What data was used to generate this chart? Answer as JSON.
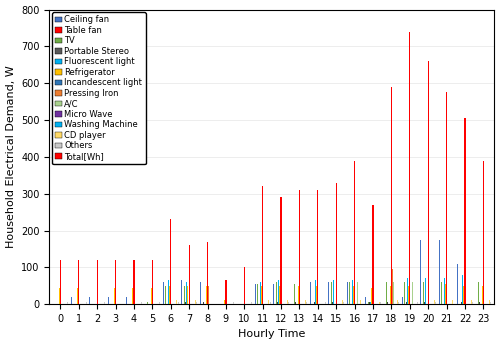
{
  "hours": [
    0,
    1,
    2,
    3,
    4,
    5,
    6,
    7,
    8,
    9,
    10,
    11,
    12,
    13,
    14,
    15,
    16,
    17,
    18,
    19,
    20,
    21,
    22,
    23
  ],
  "categories": [
    "Ceiling fan",
    "Table fan",
    "TV",
    "Portable Stereo",
    "Fluorescent light",
    "Refrigerator",
    "Incandescent light",
    "Pressing Iron",
    "A/C",
    "Micro Wave",
    "Washing Machine",
    "CD player",
    "Others",
    "Total[Wh]"
  ],
  "colors": [
    "#4472C4",
    "#FF0000",
    "#70AD47",
    "#404040",
    "#00B0F0",
    "#FFC000",
    "#2E75B6",
    "#ED7D31",
    "#A9D18E",
    "#7030A0",
    "#00B0F0",
    "#FFD966",
    "#C9C9C9",
    "#FF0000"
  ],
  "data": {
    "Ceiling fan": [
      20,
      20,
      20,
      20,
      20,
      20,
      60,
      65,
      60,
      0,
      0,
      55,
      55,
      55,
      60,
      60,
      60,
      20,
      20,
      20,
      175,
      175,
      110,
      115
    ],
    "Table fan": [
      0,
      0,
      0,
      0,
      0,
      0,
      0,
      0,
      0,
      0,
      0,
      0,
      0,
      0,
      0,
      0,
      0,
      0,
      0,
      0,
      0,
      0,
      0,
      0
    ],
    "TV": [
      0,
      0,
      0,
      0,
      0,
      5,
      50,
      50,
      0,
      0,
      0,
      55,
      60,
      55,
      60,
      60,
      60,
      5,
      60,
      60,
      60,
      60,
      75,
      60
    ],
    "Portable Stereo": [
      0,
      0,
      0,
      0,
      0,
      0,
      5,
      5,
      5,
      0,
      0,
      5,
      5,
      5,
      5,
      5,
      5,
      5,
      5,
      5,
      5,
      5,
      5,
      5
    ],
    "Fluorescent light": [
      0,
      0,
      0,
      0,
      0,
      0,
      65,
      60,
      60,
      0,
      0,
      60,
      65,
      60,
      65,
      65,
      65,
      5,
      70,
      70,
      70,
      70,
      80,
      70
    ],
    "Refrigerator": [
      45,
      45,
      45,
      45,
      45,
      45,
      50,
      50,
      50,
      10,
      10,
      50,
      50,
      50,
      50,
      50,
      50,
      45,
      50,
      50,
      55,
      55,
      50,
      50
    ],
    "Incandescent light": [
      0,
      0,
      0,
      0,
      0,
      0,
      5,
      5,
      5,
      0,
      0,
      5,
      5,
      5,
      5,
      5,
      5,
      5,
      5,
      5,
      5,
      5,
      5,
      5
    ],
    "Pressing Iron": [
      0,
      0,
      0,
      0,
      0,
      0,
      0,
      0,
      50,
      0,
      0,
      0,
      0,
      0,
      0,
      0,
      0,
      0,
      95,
      95,
      0,
      0,
      0,
      0
    ],
    "A/C": [
      0,
      0,
      0,
      0,
      0,
      0,
      0,
      0,
      0,
      0,
      0,
      0,
      0,
      0,
      0,
      0,
      60,
      0,
      60,
      60,
      0,
      0,
      0,
      0
    ],
    "Micro Wave": [
      0,
      0,
      0,
      0,
      0,
      0,
      0,
      0,
      0,
      0,
      0,
      0,
      0,
      0,
      0,
      0,
      0,
      0,
      0,
      0,
      0,
      0,
      0,
      0
    ],
    "Washing Machine": [
      0,
      0,
      0,
      0,
      0,
      0,
      0,
      0,
      0,
      0,
      0,
      0,
      0,
      0,
      0,
      0,
      0,
      0,
      0,
      0,
      0,
      0,
      0,
      0
    ],
    "CD player": [
      0,
      0,
      0,
      0,
      0,
      0,
      10,
      10,
      0,
      0,
      0,
      10,
      10,
      10,
      10,
      10,
      10,
      5,
      10,
      10,
      10,
      10,
      10,
      10
    ],
    "Others": [
      5,
      5,
      5,
      5,
      5,
      5,
      5,
      5,
      5,
      5,
      5,
      5,
      5,
      5,
      5,
      5,
      5,
      5,
      5,
      5,
      5,
      5,
      5,
      5
    ],
    "Total[Wh]": [
      120,
      120,
      120,
      120,
      120,
      120,
      230,
      160,
      170,
      65,
      100,
      320,
      290,
      310,
      310,
      330,
      390,
      270,
      590,
      740,
      660,
      575,
      505,
      390
    ]
  },
  "ylabel": "Household Electrical Demand, W",
  "xlabel": "Hourly Time",
  "ylim": [
    0,
    800
  ],
  "yticks": [
    0,
    100,
    200,
    300,
    400,
    500,
    600,
    700,
    800
  ],
  "legend_fontsize": 6.0,
  "axis_fontsize": 8,
  "tick_fontsize": 7
}
